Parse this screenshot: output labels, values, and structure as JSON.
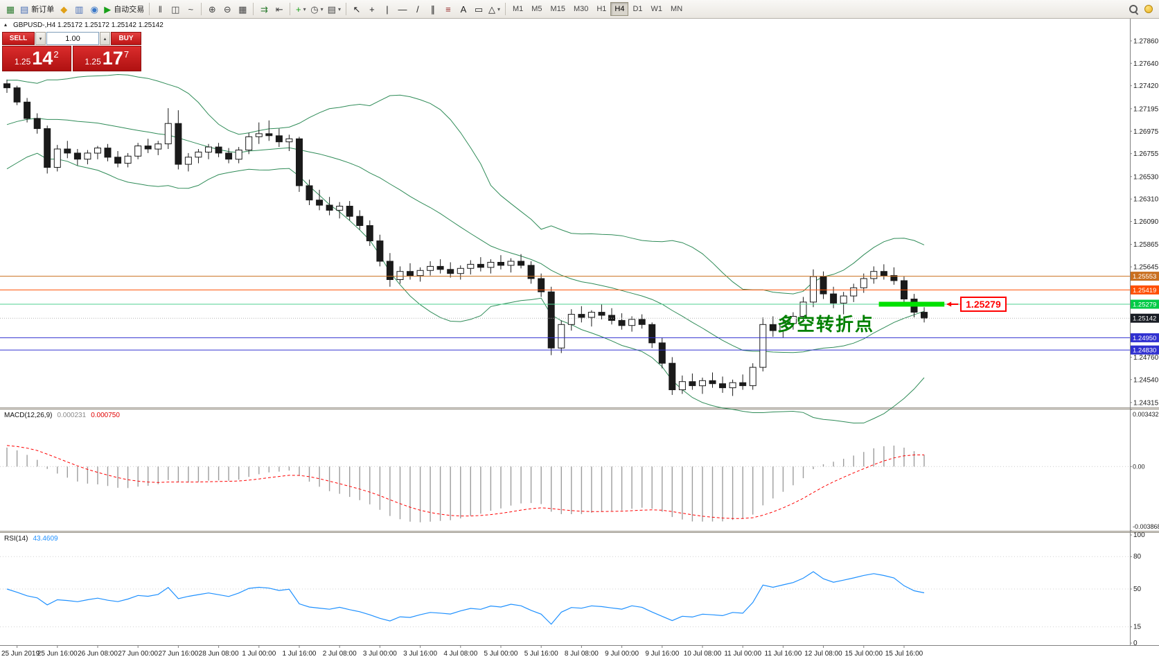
{
  "toolbar": {
    "dropdown_glyph": "▾",
    "groups": [
      {
        "name": "trade",
        "buttons": [
          {
            "name": "new-chart",
            "glyph": "▦",
            "color": "#2f7d32"
          },
          {
            "name": "new-order",
            "glyph": "▤",
            "color": "#4a6fb5",
            "label": "新订单"
          },
          {
            "name": "metaeditor",
            "glyph": "◆",
            "color": "#e0a018"
          },
          {
            "name": "market-watch",
            "glyph": "▥",
            "color": "#4a6fb5"
          },
          {
            "name": "navigator",
            "glyph": "◉",
            "color": "#3b78c8"
          },
          {
            "name": "autotrading",
            "glyph": "▶",
            "color": "#18a018",
            "label": "自动交易"
          }
        ]
      },
      {
        "name": "chart-type",
        "buttons": [
          {
            "name": "bar-chart",
            "glyph": "‖",
            "color": "#444444"
          },
          {
            "name": "candlestick-chart",
            "glyph": "◫",
            "color": "#444444"
          },
          {
            "name": "line-chart",
            "glyph": "~",
            "color": "#444444"
          }
        ]
      },
      {
        "name": "zoom",
        "buttons": [
          {
            "name": "zoom-in",
            "glyph": "⊕",
            "color": "#444444"
          },
          {
            "name": "zoom-out",
            "glyph": "⊖",
            "color": "#444444"
          },
          {
            "name": "grid",
            "glyph": "▦",
            "color": "#444444"
          }
        ]
      },
      {
        "name": "scroll",
        "buttons": [
          {
            "name": "auto-scroll",
            "glyph": "⇉",
            "color": "#2f7d32"
          },
          {
            "name": "chart-shift",
            "glyph": "⇤",
            "color": "#444444"
          }
        ]
      },
      {
        "name": "objects",
        "buttons": [
          {
            "name": "indicators",
            "glyph": "+",
            "color": "#18a018",
            "dropdown": true
          },
          {
            "name": "periods",
            "glyph": "◷",
            "color": "#444444",
            "dropdown": true
          },
          {
            "name": "templates",
            "glyph": "▤",
            "color": "#444444",
            "dropdown": true
          }
        ]
      },
      {
        "name": "drawing",
        "buttons": [
          {
            "name": "cursor",
            "glyph": "↖",
            "color": "#222222"
          },
          {
            "name": "crosshair",
            "glyph": "+",
            "color": "#222222"
          },
          {
            "name": "vertical-line",
            "glyph": "|",
            "color": "#222222"
          },
          {
            "name": "horizontal-line",
            "glyph": "—",
            "color": "#222222"
          },
          {
            "name": "trendline",
            "glyph": "/",
            "color": "#222222"
          },
          {
            "name": "channel",
            "glyph": "∥",
            "color": "#222222"
          },
          {
            "name": "fibonacci",
            "glyph": "≡",
            "color": "#9a3030"
          },
          {
            "name": "text",
            "glyph": "A",
            "color": "#222222"
          },
          {
            "name": "text-label",
            "glyph": "▭",
            "color": "#222222"
          },
          {
            "name": "shapes",
            "glyph": "△",
            "color": "#222222",
            "dropdown": true
          }
        ]
      }
    ],
    "timeframes": [
      "M1",
      "M5",
      "M15",
      "M30",
      "H1",
      "H4",
      "D1",
      "W1",
      "MN"
    ],
    "active_timeframe": "H4",
    "right_icons": [
      {
        "name": "search"
      },
      {
        "name": "favorites"
      }
    ]
  },
  "trade_panel": {
    "sell_label": "SELL",
    "buy_label": "BUY",
    "volume": "1.00",
    "spinner_down": "▾",
    "spinner_up": "▴",
    "bid": {
      "prefix": "1.25",
      "big": "14",
      "sup": "2"
    },
    "ask": {
      "prefix": "1.25",
      "big": "17",
      "sup": "7"
    }
  },
  "chart_data": {
    "type": "candlestick",
    "symbol": "GBPUSD-",
    "timeframe": "H4",
    "collapse_glyph": "▴",
    "symbol_line": "GBPUSD-,H4  1.25172 1.25172 1.25142 1.25142",
    "ylim": [
      1.24267,
      1.28077
    ],
    "y_ticks": [
      1.2786,
      1.2764,
      1.2742,
      1.27195,
      1.26975,
      1.26755,
      1.2653,
      1.2631,
      1.2609,
      1.25865,
      1.25645,
      1.2476,
      1.2454,
      1.24315
    ],
    "x_labels": [
      "25 Jun 2019",
      "25 Jun 16:00",
      "26 Jun 08:00",
      "27 Jun 00:00",
      "27 Jun 16:00",
      "28 Jun 08:00",
      "1 Jul 00:00",
      "1 Jul 16:00",
      "2 Jul 08:00",
      "3 Jul 00:00",
      "3 Jul 16:00",
      "4 Jul 08:00",
      "5 Jul 00:00",
      "5 Jul 16:00",
      "8 Jul 08:00",
      "9 Jul 00:00",
      "9 Jul 16:00",
      "10 Jul 08:00",
      "11 Jul 00:00",
      "11 Jul 16:00",
      "12 Jul 08:00",
      "15 Jul 00:00",
      "15 Jul 16:00"
    ],
    "candles": [
      [
        1.2744,
        1.2748,
        1.2735,
        1.274
      ],
      [
        1.274,
        1.2742,
        1.2723,
        1.2726
      ],
      [
        1.2726,
        1.273,
        1.2706,
        1.271
      ],
      [
        1.271,
        1.2715,
        1.2695,
        1.27
      ],
      [
        1.27,
        1.2703,
        1.2656,
        1.2662
      ],
      [
        1.2662,
        1.2684,
        1.2658,
        1.268
      ],
      [
        1.268,
        1.2688,
        1.2671,
        1.2676
      ],
      [
        1.2676,
        1.268,
        1.2664,
        1.267
      ],
      [
        1.267,
        1.2679,
        1.2665,
        1.2676
      ],
      [
        1.2676,
        1.2683,
        1.267,
        1.2681
      ],
      [
        1.2681,
        1.2685,
        1.2668,
        1.2672
      ],
      [
        1.2672,
        1.2678,
        1.2662,
        1.2666
      ],
      [
        1.2666,
        1.2676,
        1.2662,
        1.2673
      ],
      [
        1.2673,
        1.2686,
        1.267,
        1.2683
      ],
      [
        1.2683,
        1.269,
        1.2676,
        1.268
      ],
      [
        1.268,
        1.2688,
        1.2674,
        1.2685
      ],
      [
        1.2685,
        1.272,
        1.268,
        1.2705
      ],
      [
        1.2705,
        1.2718,
        1.266,
        1.2665
      ],
      [
        1.2665,
        1.2676,
        1.2658,
        1.2672
      ],
      [
        1.2672,
        1.268,
        1.2666,
        1.2677
      ],
      [
        1.2677,
        1.2685,
        1.267,
        1.2682
      ],
      [
        1.2682,
        1.2686,
        1.2672,
        1.2676
      ],
      [
        1.2676,
        1.2681,
        1.2666,
        1.267
      ],
      [
        1.267,
        1.2682,
        1.2666,
        1.2679
      ],
      [
        1.2679,
        1.2696,
        1.2675,
        1.2692
      ],
      [
        1.2692,
        1.2706,
        1.2685,
        1.2695
      ],
      [
        1.2695,
        1.2708,
        1.2688,
        1.2693
      ],
      [
        1.2693,
        1.27,
        1.2682,
        1.2687
      ],
      [
        1.2687,
        1.2694,
        1.2678,
        1.269
      ],
      [
        1.269,
        1.2692,
        1.2638,
        1.2644
      ],
      [
        1.2644,
        1.265,
        1.2625,
        1.263
      ],
      [
        1.263,
        1.264,
        1.262,
        1.2625
      ],
      [
        1.2625,
        1.2633,
        1.2615,
        1.262
      ],
      [
        1.262,
        1.2628,
        1.2612,
        1.2624
      ],
      [
        1.2624,
        1.2629,
        1.261,
        1.2614
      ],
      [
        1.2614,
        1.262,
        1.2601,
        1.2605
      ],
      [
        1.2605,
        1.261,
        1.2585,
        1.259
      ],
      [
        1.259,
        1.2596,
        1.2565,
        1.257
      ],
      [
        1.257,
        1.2578,
        1.2545,
        1.2552
      ],
      [
        1.2552,
        1.2565,
        1.2548,
        1.256
      ],
      [
        1.256,
        1.2568,
        1.2552,
        1.2556
      ],
      [
        1.2556,
        1.2564,
        1.255,
        1.2561
      ],
      [
        1.2561,
        1.257,
        1.2556,
        1.2565
      ],
      [
        1.2565,
        1.2572,
        1.2558,
        1.2562
      ],
      [
        1.2562,
        1.2569,
        1.2554,
        1.2558
      ],
      [
        1.2558,
        1.2566,
        1.2552,
        1.2563
      ],
      [
        1.2563,
        1.2571,
        1.2557,
        1.2567
      ],
      [
        1.2567,
        1.2574,
        1.256,
        1.2564
      ],
      [
        1.2564,
        1.2572,
        1.2558,
        1.2569
      ],
      [
        1.2569,
        1.2576,
        1.2562,
        1.2566
      ],
      [
        1.2566,
        1.2573,
        1.2559,
        1.257
      ],
      [
        1.257,
        1.2577,
        1.2563,
        1.2566
      ],
      [
        1.2566,
        1.257,
        1.2548,
        1.2553
      ],
      [
        1.2553,
        1.2558,
        1.2535,
        1.254
      ],
      [
        1.254,
        1.2545,
        1.2478,
        1.2485
      ],
      [
        1.2485,
        1.2512,
        1.248,
        1.2508
      ],
      [
        1.2508,
        1.2523,
        1.2502,
        1.2518
      ],
      [
        1.2518,
        1.2526,
        1.251,
        1.2515
      ],
      [
        1.2515,
        1.2522,
        1.2506,
        1.252
      ],
      [
        1.252,
        1.2528,
        1.2513,
        1.2517
      ],
      [
        1.2517,
        1.2524,
        1.2508,
        1.2512
      ],
      [
        1.2512,
        1.2519,
        1.2503,
        1.2507
      ],
      [
        1.2507,
        1.2516,
        1.2501,
        1.2513
      ],
      [
        1.2513,
        1.2518,
        1.2504,
        1.2508
      ],
      [
        1.2508,
        1.251,
        1.2485,
        1.249
      ],
      [
        1.249,
        1.2495,
        1.2465,
        1.247
      ],
      [
        1.247,
        1.2476,
        1.2439,
        1.2444
      ],
      [
        1.2444,
        1.2458,
        1.244,
        1.2452
      ],
      [
        1.2452,
        1.246,
        1.2444,
        1.2448
      ],
      [
        1.2448,
        1.2456,
        1.244,
        1.2453
      ],
      [
        1.2453,
        1.2461,
        1.2446,
        1.245
      ],
      [
        1.245,
        1.2457,
        1.2441,
        1.2446
      ],
      [
        1.2446,
        1.2454,
        1.2438,
        1.2451
      ],
      [
        1.2451,
        1.2459,
        1.2444,
        1.2448
      ],
      [
        1.2448,
        1.247,
        1.2444,
        1.2466
      ],
      [
        1.2466,
        1.2515,
        1.2462,
        1.2508
      ],
      [
        1.2508,
        1.2516,
        1.2496,
        1.2502
      ],
      [
        1.2502,
        1.2512,
        1.2495,
        1.2509
      ],
      [
        1.2509,
        1.252,
        1.2503,
        1.2516
      ],
      [
        1.2516,
        1.2535,
        1.251,
        1.253
      ],
      [
        1.253,
        1.2562,
        1.2525,
        1.2555
      ],
      [
        1.2555,
        1.256,
        1.2533,
        1.2538
      ],
      [
        1.2538,
        1.2545,
        1.2524,
        1.2529
      ],
      [
        1.2529,
        1.254,
        1.2518,
        1.2536
      ],
      [
        1.2536,
        1.2548,
        1.253,
        1.2544
      ],
      [
        1.2544,
        1.2558,
        1.2539,
        1.2553
      ],
      [
        1.2553,
        1.2565,
        1.2548,
        1.256
      ],
      [
        1.256,
        1.2567,
        1.2552,
        1.2556
      ],
      [
        1.2556,
        1.2564,
        1.2547,
        1.2551
      ],
      [
        1.2551,
        1.2555,
        1.2528,
        1.2533
      ],
      [
        1.2533,
        1.2538,
        1.2515,
        1.252
      ],
      [
        1.252,
        1.2525,
        1.251,
        1.25142
      ]
    ],
    "bollinger": {
      "period": 20,
      "deviation": 2,
      "color": "#2e8b57",
      "prehistory": [
        1.2672,
        1.2665,
        1.267,
        1.2678,
        1.2685,
        1.268,
        1.2688,
        1.2695,
        1.269,
        1.27,
        1.2708,
        1.2702,
        1.271,
        1.2718,
        1.2712,
        1.272,
        1.2728,
        1.2722,
        1.273,
        1.2738
      ]
    },
    "levels": [
      {
        "price": 1.25553,
        "label": "1.25553",
        "color": "#c96f1f",
        "style": "solid"
      },
      {
        "price": 1.25419,
        "label": "1.25419",
        "color": "#ff4f02",
        "style": "solid"
      },
      {
        "price": 1.25279,
        "label": "1.25279",
        "color": "#4fd190",
        "badge": "#00ca45",
        "style": "solid"
      },
      {
        "price": 1.25142,
        "label": "1.25142",
        "color": "#b4b4b4",
        "badge": "#191d24",
        "style": "dot"
      },
      {
        "price": 1.2495,
        "label": "1.24950",
        "color": "#3030d0",
        "style": "solid"
      },
      {
        "price": 1.2483,
        "label": "1.24830",
        "color": "#3030d0",
        "style": "solid"
      }
    ],
    "highlight": {
      "price": 1.25279,
      "start_index": 86.5,
      "end_index": 93,
      "height": 7,
      "color": "#00e000"
    },
    "callout": {
      "text": "1.25279",
      "color": "#ff0000"
    },
    "annotation": {
      "text": "多空转折点",
      "color": "#008000"
    },
    "indicators": {
      "macd": {
        "label": "MACD(12,26,9)",
        "values": [
          "0.000231",
          "0.000750"
        ],
        "ylim": [
          -0.003868,
          0.003432
        ],
        "y_ticks": [
          "0.003432",
          "0.00",
          "-0.003868"
        ],
        "histogram_color": "#9c9c9c",
        "signal_color": "#ff0000"
      },
      "rsi": {
        "label": "RSI(14)",
        "value": "43.4609",
        "line_color": "#1e90ff",
        "levels": [
          80,
          50,
          15
        ],
        "y_ticks": [
          "100",
          "80",
          "50",
          "15",
          "0"
        ]
      }
    }
  }
}
